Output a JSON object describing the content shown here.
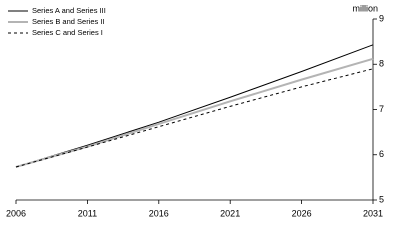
{
  "chart_data": {
    "type": "line",
    "y_label": "million",
    "x": [
      2006,
      2011,
      2016,
      2021,
      2026,
      2031
    ],
    "series": [
      {
        "name": "Series A and Series III",
        "color": "#000000",
        "style": "solid",
        "values": [
          5.73,
          6.21,
          6.72,
          7.27,
          7.84,
          8.43
        ]
      },
      {
        "name": "Series B and Series II",
        "color": "#b4b4b4",
        "style": "solid",
        "values": [
          5.73,
          6.18,
          6.68,
          7.18,
          7.66,
          8.12
        ]
      },
      {
        "name": "Series C and Series I",
        "color": "#000000",
        "style": "dashed",
        "values": [
          5.73,
          6.17,
          6.62,
          7.07,
          7.5,
          7.9
        ]
      }
    ],
    "xlim": [
      2006,
      2031
    ],
    "xticks": [
      2006,
      2011,
      2016,
      2021,
      2026,
      2031
    ],
    "ylim": [
      5,
      9
    ],
    "yticks": [
      5,
      6,
      7,
      8,
      9
    ],
    "legend": "top-left"
  }
}
